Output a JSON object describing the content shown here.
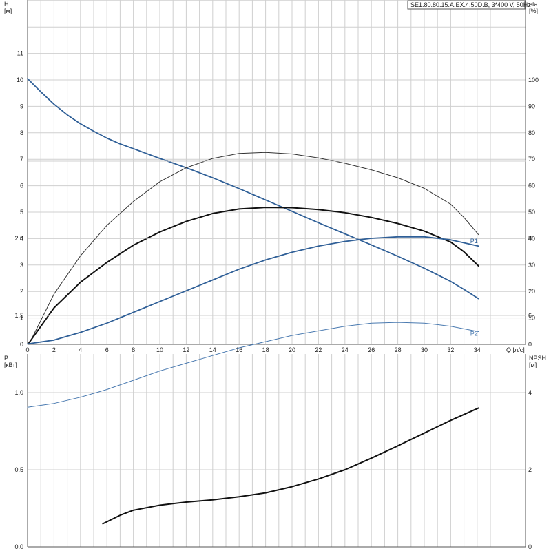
{
  "chart_data": [
    {
      "type": "line",
      "title": "SE1.80.80.15.A.EX.4.50D.B, 3*400 V, 50Hz",
      "xlabel": "Q [л/с]",
      "ylabel_left": [
        "H",
        "[м]"
      ],
      "ylabel_right": [
        "eta",
        "[%]"
      ],
      "xlim": [
        0,
        37
      ],
      "ylim_left": [
        0,
        13
      ],
      "ylim_right": [
        0,
        130
      ],
      "x_ticks": [
        0,
        2,
        4,
        6,
        8,
        10,
        12,
        14,
        16,
        18,
        20,
        22,
        24,
        26,
        28,
        30,
        32,
        34
      ],
      "y_ticks_left": [
        0,
        1,
        2,
        3,
        4,
        5,
        6,
        7,
        8,
        9,
        10,
        11
      ],
      "y_ticks_right": [
        0,
        10,
        20,
        30,
        40,
        50,
        60,
        70,
        80,
        90,
        100
      ],
      "grid": true,
      "series": [
        {
          "axis": "left",
          "color": "#2f5f97",
          "width": 1.8,
          "x": [
            0,
            1,
            2,
            3,
            4,
            5,
            6,
            7,
            8,
            10,
            12,
            14,
            16,
            18,
            20,
            22,
            24,
            26,
            28,
            30,
            32,
            33,
            34.1
          ],
          "y": [
            10.05,
            9.55,
            9.08,
            8.68,
            8.34,
            8.06,
            7.8,
            7.58,
            7.4,
            7.03,
            6.68,
            6.3,
            5.89,
            5.46,
            5.03,
            4.6,
            4.18,
            3.76,
            3.33,
            2.88,
            2.38,
            2.08,
            1.73
          ]
        },
        {
          "axis": "right",
          "color": "#333333",
          "width": 1,
          "x": [
            0.1,
            2,
            4,
            6,
            8,
            10,
            12,
            14,
            16,
            18,
            20,
            22,
            24,
            26,
            28,
            30,
            32,
            33,
            34.1
          ],
          "y": [
            0,
            19,
            33.5,
            45,
            54,
            61.5,
            66.8,
            70.3,
            72.2,
            72.6,
            72,
            70.5,
            68.5,
            66,
            63,
            59,
            53,
            48,
            41.5
          ]
        },
        {
          "axis": "left",
          "color": "#111111",
          "width": 2,
          "x": [
            0.1,
            2,
            4,
            6,
            8,
            10,
            12,
            14,
            16,
            18,
            20,
            22,
            24,
            26,
            28,
            30,
            32,
            33,
            34.1
          ],
          "y": [
            0.05,
            1.38,
            2.35,
            3.1,
            3.75,
            4.25,
            4.65,
            4.95,
            5.12,
            5.18,
            5.17,
            5.1,
            4.98,
            4.8,
            4.57,
            4.28,
            3.87,
            3.5,
            2.97
          ]
        }
      ]
    },
    {
      "type": "line",
      "xlabel": "",
      "ylabel_left": [
        "P",
        "[кВт]"
      ],
      "ylabel_right": [
        "NPSH",
        "[м]"
      ],
      "xlim": [
        0,
        37
      ],
      "ylim_left": [
        0,
        2.5
      ],
      "ylim_right": [
        0,
        10
      ],
      "x_ticks": [
        0,
        2,
        4,
        6,
        8,
        10,
        12,
        14,
        16,
        18,
        20,
        22,
        24,
        26,
        28,
        30,
        32,
        34
      ],
      "y_ticks_left": [
        "0.0",
        "0.5",
        "1.0",
        "1.5",
        "2.0"
      ],
      "y_ticks_right": [
        0,
        2,
        4,
        6,
        8
      ],
      "grid": true,
      "series": [
        {
          "name": "P1",
          "axis": "left",
          "color": "#2f5f97",
          "width": 1.8,
          "x": [
            0,
            2,
            4,
            6,
            8,
            10,
            12,
            14,
            16,
            18,
            20,
            22,
            24,
            26,
            28,
            30,
            32,
            34.1
          ],
          "y": [
            1.315,
            1.34,
            1.39,
            1.45,
            1.52,
            1.59,
            1.66,
            1.73,
            1.8,
            1.86,
            1.91,
            1.95,
            1.98,
            2.0,
            2.01,
            2.01,
            1.99,
            1.95
          ]
        },
        {
          "name": "P2",
          "axis": "left",
          "color": "#4a7ab0",
          "width": 1,
          "x": [
            0,
            2,
            4,
            6,
            8,
            10,
            12,
            14,
            16,
            18,
            20,
            22,
            24,
            26,
            28,
            30,
            32,
            34.1
          ],
          "y": [
            0.905,
            0.93,
            0.97,
            1.02,
            1.08,
            1.14,
            1.19,
            1.24,
            1.29,
            1.33,
            1.37,
            1.4,
            1.43,
            1.45,
            1.455,
            1.45,
            1.43,
            1.395
          ]
        },
        {
          "axis": "right",
          "color": "#111111",
          "width": 2,
          "x": [
            5.7,
            7,
            8,
            10,
            12,
            14,
            16,
            18,
            20,
            22,
            24,
            26,
            28,
            30,
            32,
            34.1
          ],
          "y": [
            0.6,
            0.82,
            0.95,
            1.08,
            1.16,
            1.22,
            1.3,
            1.4,
            1.56,
            1.76,
            2.0,
            2.3,
            2.62,
            2.95,
            3.28,
            3.6
          ]
        }
      ]
    }
  ]
}
